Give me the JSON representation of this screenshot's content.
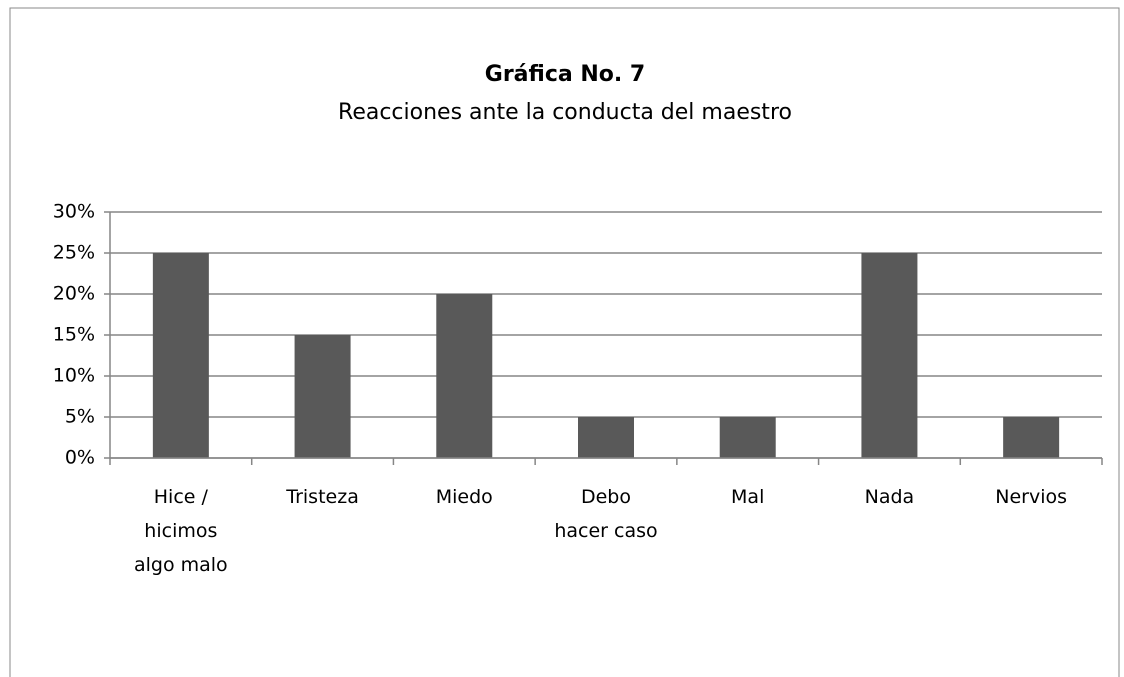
{
  "chart_data": {
    "type": "bar",
    "title": "Gráfica No. 7",
    "subtitle": "Reacciones ante la conducta del maestro",
    "categories": [
      "Hice / hicimos algo malo",
      "Tristeza",
      "Miedo",
      "Debo hacer caso",
      "Mal",
      "Nada",
      "Nervios"
    ],
    "values": [
      25,
      15,
      20,
      5,
      5,
      25,
      5
    ],
    "color": "#595959",
    "ylim": [
      0,
      30
    ],
    "yticks": [
      {
        "value": 0,
        "label": "0%"
      },
      {
        "value": 5,
        "label": "5%"
      },
      {
        "value": 10,
        "label": "10%"
      },
      {
        "value": 15,
        "label": "15%"
      },
      {
        "value": 20,
        "label": "20%"
      },
      {
        "value": 25,
        "label": "25%"
      },
      {
        "value": 30,
        "label": "30%"
      }
    ],
    "grid": true
  }
}
